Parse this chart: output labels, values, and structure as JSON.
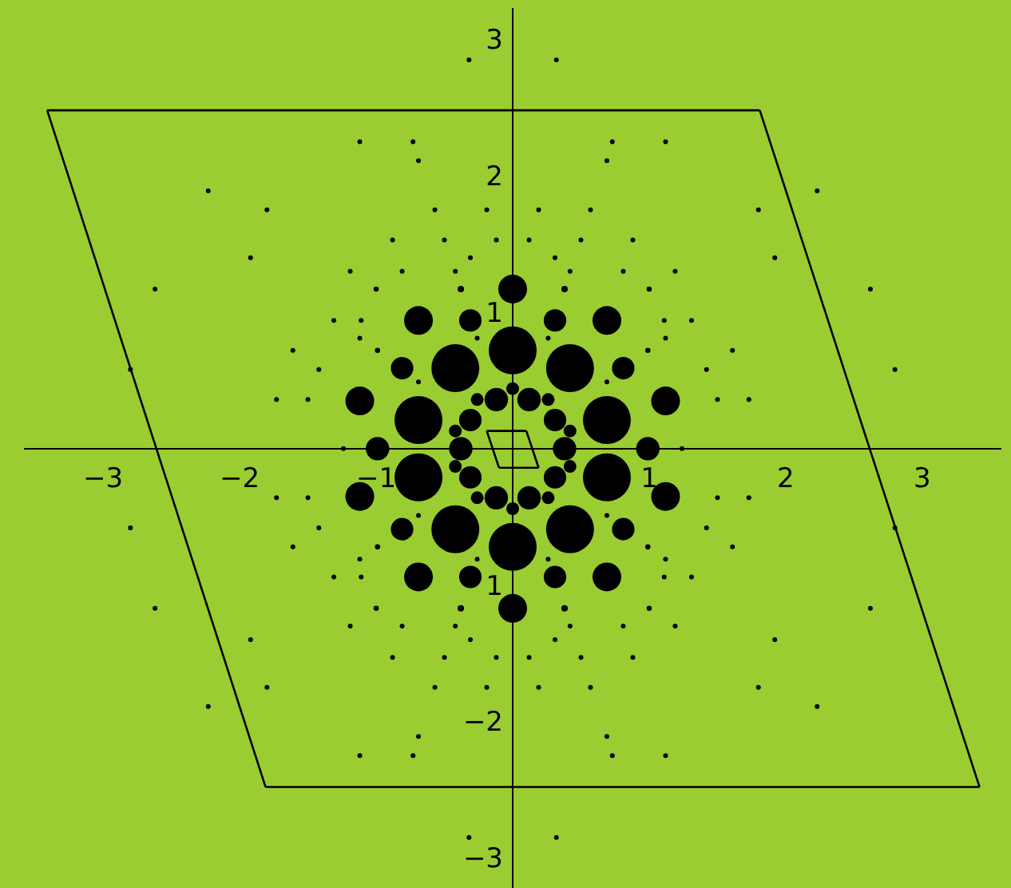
{
  "chart_data": {
    "type": "bubble",
    "xlim": [
      -3.58,
      3.58
    ],
    "ylim": [
      -3.22,
      3.23
    ],
    "xticks": [
      -3,
      -2,
      -1,
      1,
      2,
      3
    ],
    "yticks": [
      -3,
      -2,
      {
        "value": -1,
        "label": "1"
      },
      1,
      2,
      3
    ],
    "grid": false,
    "marker": "circle",
    "series": [
      {
        "color": "#000000",
        "x": [
          0,
          0,
          0,
          0,
          0,
          0,
          0.99,
          -0.99,
          0.38,
          -0.38,
          0.42,
          -0.42,
          0.42,
          -0.42,
          0.69,
          -0.69,
          0.69,
          -0.69,
          0.69,
          -0.69,
          0.69,
          -0.69,
          1.12,
          -1.12,
          1.12,
          -1.12,
          0.31,
          -0.31,
          0.31,
          -0.31,
          0.81,
          -0.81,
          0.81,
          -0.81,
          0.12,
          -0.12,
          0.12,
          -0.12,
          0.31,
          -0.31,
          0.31,
          -0.31,
          0.26,
          -0.26,
          0.26,
          -0.26,
          0.42,
          -0.42,
          0.42,
          -0.42,
          0.38,
          -0.38,
          0.38,
          -0.38,
          1.0,
          -1.0,
          1.0,
          -1.0,
          0.99,
          -0.99,
          0.99,
          -0.99
        ],
        "values": [
          0.72,
          -0.72,
          1.17,
          -1.17,
          0.44,
          -0.44,
          0,
          0,
          0,
          0,
          0.59,
          0.59,
          -0.59,
          -0.59,
          0.21,
          0.21,
          -0.21,
          -0.21,
          0.94,
          0.94,
          -0.94,
          -0.94,
          0.35,
          0.35,
          -0.35,
          -0.35,
          0.94,
          0.94,
          -0.94,
          -0.94,
          0.59,
          0.59,
          -0.59,
          -0.59,
          0.36,
          0.36,
          -0.36,
          -0.36,
          0.21,
          0.21,
          -0.21,
          -0.21,
          0.36,
          0.36,
          -0.36,
          -0.36,
          0.13,
          0.13,
          -0.13,
          -0.13,
          1.17,
          1.17,
          -1.17,
          -1.17,
          1.17,
          1.17,
          -1.17,
          -1.17,
          0.72,
          0.72,
          -0.72,
          -0.72
        ],
        "sizes": [
          1,
          1,
          0.36,
          0.36,
          0.071,
          0.071,
          0.24,
          0.24,
          0.24,
          0.24,
          1,
          1,
          1,
          1,
          1,
          1,
          1,
          1,
          0.36,
          0.36,
          0.36,
          0.36,
          0.36,
          0.36,
          0.36,
          0.36,
          0.22,
          0.22,
          0.22,
          0.22,
          0.22,
          0.22,
          0.22,
          0.22,
          0.24,
          0.24,
          0.24,
          0.24,
          0.22,
          0.22,
          0.22,
          0.22,
          0.071,
          0.071,
          0.071,
          0.071,
          0.071,
          0.071,
          0.071,
          0.071,
          0.018,
          0.018,
          0.018,
          0.018,
          0.012,
          0.012,
          0.012,
          0.012,
          0.012,
          0.012,
          0.012,
          0.012
        ]
      },
      {
        "type": "scatter",
        "color": "#000000",
        "x": [
          1.24,
          -1.24,
          1.42,
          -1.42,
          1.42,
          -1.42,
          1.5,
          -1.5,
          1.5,
          -1.5,
          0.69,
          -0.69,
          0.69,
          -0.69,
          0.26,
          -0.26,
          0.26,
          -0.26,
          0.42,
          -0.42,
          0.42,
          -0.42,
          0.81,
          -0.81,
          0.81,
          -0.81,
          0.12,
          -0.12,
          0.12,
          -0.12,
          1.12,
          -1.12,
          1.12,
          -1.12,
          0.5,
          -0.5,
          0.5,
          -0.5,
          0.88,
          -0.88,
          0.88,
          -0.88,
          0.19,
          -0.19,
          0.19,
          -0.19,
          0.57,
          -0.57,
          0.57,
          -0.57,
          1.8,
          -1.8,
          1.8,
          -1.8,
          0.73,
          -0.73,
          0.73,
          -0.73,
          1.12,
          -1.12,
          1.12,
          -1.12,
          1.31,
          -1.31,
          1.31,
          -1.31,
          0.69,
          -0.69,
          0.69,
          -0.69,
          1.19,
          -1.19,
          1.19,
          -1.19,
          1.11,
          -1.11,
          1.11,
          -1.11,
          1.61,
          -1.61,
          1.61,
          -1.61,
          1.92,
          -1.92,
          1.92,
          -1.92,
          2.62,
          -2.62,
          2.62,
          -2.62,
          2.8,
          -2.8,
          2.8,
          -2.8,
          2.23,
          -2.23,
          2.23,
          -2.23,
          1.73,
          -1.73,
          1.73,
          -1.73,
          0.31,
          -0.31,
          0.31,
          -0.31,
          0.32,
          -0.32,
          0.32,
          -0.32
        ],
        "values": [
          0,
          0,
          0.58,
          0.58,
          -0.58,
          -0.58,
          0.36,
          0.36,
          -0.36,
          -0.36,
          0.49,
          0.49,
          -0.49,
          -0.49,
          0.81,
          0.81,
          -0.81,
          -0.81,
          1.3,
          1.3,
          -1.3,
          -1.3,
          1.3,
          1.3,
          -1.3,
          -1.3,
          1.53,
          1.53,
          -1.53,
          -1.53,
          0.81,
          0.81,
          -0.81,
          -0.81,
          1.53,
          1.53,
          -1.53,
          -1.53,
          1.53,
          1.53,
          -1.53,
          -1.53,
          1.75,
          1.75,
          -1.75,
          -1.75,
          1.75,
          1.75,
          -1.75,
          -1.75,
          1.75,
          1.75,
          -1.75,
          -1.75,
          2.25,
          2.25,
          -2.25,
          -2.25,
          2.25,
          2.25,
          -2.25,
          -2.25,
          0.94,
          0.94,
          -0.94,
          -0.94,
          2.11,
          2.11,
          -2.11,
          -2.11,
          1.3,
          1.3,
          -1.3,
          -1.3,
          0.94,
          0.94,
          -0.94,
          -0.94,
          0.72,
          0.72,
          -0.72,
          -0.72,
          1.4,
          1.4,
          -1.4,
          -1.4,
          1.17,
          1.17,
          -1.17,
          -1.17,
          0.58,
          0.58,
          -0.58,
          -0.58,
          1.89,
          1.89,
          -1.89,
          -1.89,
          0.36,
          0.36,
          -0.36,
          -0.36,
          1.4,
          1.4,
          -1.4,
          -1.4,
          2.85,
          2.85,
          -2.85,
          -2.85
        ]
      },
      {
        "type": "line",
        "color": "#000000",
        "marker": "none",
        "line_style": "solid",
        "x": [
          -3.41,
          1.81
        ],
        "values": [
          2.48,
          2.48
        ]
      },
      {
        "type": "line",
        "color": "#000000",
        "marker": "none",
        "line_style": "solid",
        "x": [
          1.81,
          3.42
        ],
        "values": [
          2.48,
          -2.48
        ]
      },
      {
        "type": "line",
        "color": "#000000",
        "marker": "none",
        "line_style": "solid",
        "x": [
          -1.81,
          3.42
        ],
        "values": [
          -2.48,
          -2.48
        ]
      },
      {
        "type": "line",
        "color": "#000000",
        "marker": "none",
        "line_style": "solid",
        "x": [
          -3.41,
          -1.81
        ],
        "values": [
          2.48,
          -2.48
        ]
      },
      {
        "type": "line",
        "color": "#000000",
        "marker": "none",
        "line_style": "solid",
        "x": [
          -0.19,
          0.1
        ],
        "values": [
          0.13,
          0.13
        ]
      },
      {
        "type": "line",
        "color": "#000000",
        "marker": "none",
        "line_style": "solid",
        "x": [
          0.1,
          0.19
        ],
        "values": [
          0.13,
          -0.14
        ]
      },
      {
        "type": "line",
        "color": "#000000",
        "marker": "none",
        "line_style": "solid",
        "x": [
          -0.1,
          0.19
        ],
        "values": [
          -0.14,
          -0.14
        ]
      },
      {
        "type": "line",
        "color": "#000000",
        "marker": "none",
        "line_style": "solid",
        "x": [
          -0.19,
          -0.1
        ],
        "values": [
          0.13,
          -0.14
        ]
      }
    ]
  }
}
